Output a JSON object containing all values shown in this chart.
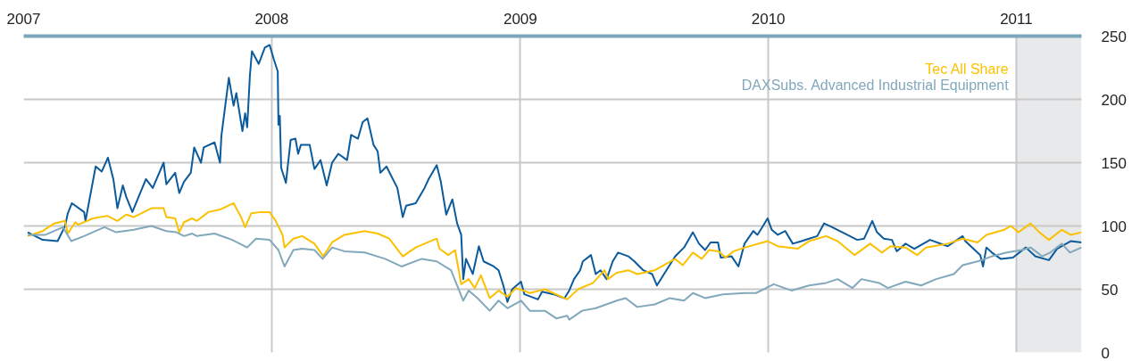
{
  "chart_data": {
    "type": "line",
    "xlim": [
      "2007-01-01",
      "2011-04-07"
    ],
    "xticks": [
      "2007",
      "2008",
      "2009",
      "2010",
      "2011"
    ],
    "ylim": [
      0,
      250
    ],
    "yticks": [
      0,
      50,
      100,
      150,
      200,
      250
    ],
    "grid": true,
    "legend": "top right",
    "bands": [
      {
        "axis": "x",
        "from": "2011-01-01",
        "to": "2011-04-07",
        "color": "#e8e9eb"
      }
    ],
    "series": [
      {
        "color": "#0b5a9b",
        "x": [
          "2007-01-07",
          "2007-01-29",
          "2007-02-20",
          "2007-03-03",
          "2007-03-07",
          "2007-03-13",
          "2007-03-31",
          "2007-04-02",
          "2007-04-17",
          "2007-04-26",
          "2007-05-05",
          "2007-05-13",
          "2007-05-19",
          "2007-05-27",
          "2007-06-01",
          "2007-06-10",
          "2007-06-30",
          "2007-07-10",
          "2007-07-26",
          "2007-07-30",
          "2007-08-12",
          "2007-08-18",
          "2007-08-25",
          "2007-09-04",
          "2007-09-09",
          "2007-09-19",
          "2007-09-23",
          "2007-10-09",
          "2007-10-17",
          "2007-10-19",
          "2007-10-24",
          "2007-10-30",
          "2007-11-06",
          "2007-11-10",
          "2007-11-19",
          "2007-11-23",
          "2007-11-26",
          "2007-11-30",
          "2007-12-03",
          "2007-12-13",
          "2007-12-22",
          "2007-12-29",
          "2008-01-04",
          "2008-01-10",
          "2008-01-11",
          "2008-01-13",
          "2008-01-15",
          "2008-01-22",
          "2008-01-29",
          "2008-02-05",
          "2008-02-09",
          "2008-02-13",
          "2008-02-26",
          "2008-03-04",
          "2008-03-13",
          "2008-03-22",
          "2008-03-30",
          "2008-04-08",
          "2008-04-21",
          "2008-04-27",
          "2008-05-07",
          "2008-05-14",
          "2008-05-21",
          "2008-05-30",
          "2008-06-05",
          "2008-06-09",
          "2008-06-18",
          "2008-07-04",
          "2008-07-12",
          "2008-07-17",
          "2008-07-31",
          "2008-08-13",
          "2008-08-19",
          "2008-08-31",
          "2008-09-06",
          "2008-09-14",
          "2008-09-23",
          "2008-09-30",
          "2008-10-06",
          "2008-10-09",
          "2008-10-13",
          "2008-10-23",
          "2008-11-01",
          "2008-11-08",
          "2008-11-23",
          "2008-11-30",
          "2008-12-07",
          "2008-12-13",
          "2008-12-20",
          "2009-01-02",
          "2009-01-07",
          "2009-01-27",
          "2009-02-02",
          "2009-02-19",
          "2009-03-07",
          "2009-03-14",
          "2009-03-21",
          "2009-03-30",
          "2009-04-03",
          "2009-04-15",
          "2009-04-22",
          "2009-04-29",
          "2009-05-08",
          "2009-05-17",
          "2009-05-25",
          "2009-06-09",
          "2009-06-18",
          "2009-07-01",
          "2009-07-14",
          "2009-07-21",
          "2009-08-04",
          "2009-08-17",
          "2009-08-30",
          "2009-09-12",
          "2009-09-21",
          "2009-09-30",
          "2009-10-08",
          "2009-10-19",
          "2009-10-23",
          "2009-11-08",
          "2009-11-18",
          "2009-11-27",
          "2009-12-10",
          "2009-12-16",
          "2009-12-23",
          "2009-12-31",
          "2010-01-06",
          "2010-01-15",
          "2010-01-26",
          "2010-02-06",
          "2010-02-19",
          "2010-03-02",
          "2010-03-14",
          "2010-03-24",
          "2010-04-05",
          "2010-04-16",
          "2010-05-01",
          "2010-05-12",
          "2010-05-22",
          "2010-06-03",
          "2010-06-10",
          "2010-06-20",
          "2010-07-02",
          "2010-07-09",
          "2010-07-22",
          "2010-08-04",
          "2010-08-27",
          "2010-09-22",
          "2010-10-14",
          "2010-10-18",
          "2010-11-09",
          "2010-11-13",
          "2010-11-18",
          "2010-11-26",
          "2010-12-09",
          "2010-12-27",
          "2011-01-15",
          "2011-01-29",
          "2011-02-18",
          "2011-03-02",
          "2011-03-22",
          "2011-04-07"
        ],
        "values": [
          95,
          89,
          88,
          100,
          110,
          118,
          111,
          104,
          147,
          143,
          154,
          137,
          114,
          132,
          123,
          111,
          137,
          130,
          150,
          133,
          142,
          126,
          135,
          142,
          162,
          150,
          162,
          166,
          150,
          171,
          192,
          217,
          195,
          205,
          175,
          189,
          178,
          219,
          238,
          228,
          241,
          243,
          232,
          222,
          180,
          187,
          146,
          134,
          168,
          169,
          157,
          164,
          164,
          145,
          152,
          132,
          150,
          157,
          152,
          172,
          169,
          182,
          185,
          164,
          159,
          142,
          147,
          130,
          107,
          116,
          118,
          130,
          137,
          148,
          135,
          109,
          121,
          102,
          93,
          58,
          74,
          62,
          84,
          72,
          68,
          65,
          53,
          40,
          50,
          56,
          46,
          42,
          48,
          46,
          43,
          49,
          58,
          65,
          72,
          77,
          62,
          65,
          58,
          72,
          79,
          76,
          72,
          65,
          62,
          53,
          65,
          76,
          83,
          95,
          86,
          81,
          87,
          87,
          75,
          76,
          68,
          86,
          96,
          93,
          99,
          106,
          97,
          93,
          96,
          86,
          88,
          90,
          92,
          102,
          99,
          96,
          92,
          89,
          90,
          104,
          95,
          90,
          89,
          80,
          86,
          82,
          89,
          84,
          92,
          88,
          77,
          68,
          83,
          79,
          74,
          75,
          83,
          76,
          73,
          82,
          88,
          87
        ]
      },
      {
        "name": "Tec All Share",
        "color": "#fbc100",
        "x": [
          "2007-01-07",
          "2007-01-29",
          "2007-02-15",
          "2007-03-03",
          "2007-03-07",
          "2007-03-18",
          "2007-03-22",
          "2007-04-13",
          "2007-05-04",
          "2007-05-19",
          "2007-06-01",
          "2007-06-12",
          "2007-07-08",
          "2007-07-26",
          "2007-07-30",
          "2007-08-12",
          "2007-08-18",
          "2007-08-25",
          "2007-09-06",
          "2007-09-13",
          "2007-09-30",
          "2007-10-17",
          "2007-11-06",
          "2007-11-17",
          "2007-11-23",
          "2007-12-02",
          "2007-12-16",
          "2007-12-29",
          "2008-01-07",
          "2008-01-17",
          "2008-01-20",
          "2008-02-02",
          "2008-02-15",
          "2008-03-04",
          "2008-03-17",
          "2008-03-30",
          "2008-04-17",
          "2008-05-17",
          "2008-06-05",
          "2008-06-22",
          "2008-07-12",
          "2008-07-31",
          "2008-08-31",
          "2008-09-04",
          "2008-09-17",
          "2008-09-27",
          "2008-10-06",
          "2008-10-17",
          "2008-10-26",
          "2008-11-04",
          "2008-11-17",
          "2008-11-30",
          "2008-12-13",
          "2008-12-26",
          "2009-01-15",
          "2009-02-06",
          "2009-03-11",
          "2009-03-27",
          "2009-04-18",
          "2009-05-05",
          "2009-05-10",
          "2009-05-23",
          "2009-06-09",
          "2009-06-22",
          "2009-07-18",
          "2009-07-31",
          "2009-08-17",
          "2009-08-28",
          "2009-09-12",
          "2009-09-25",
          "2009-10-06",
          "2009-10-20",
          "2009-10-30",
          "2009-11-11",
          "2009-11-28",
          "2009-12-31",
          "2010-01-15",
          "2010-02-13",
          "2010-03-02",
          "2010-03-27",
          "2010-04-13",
          "2010-05-08",
          "2010-05-31",
          "2010-06-17",
          "2010-06-30",
          "2010-07-22",
          "2010-08-08",
          "2010-08-21",
          "2010-09-01",
          "2010-09-22",
          "2010-10-14",
          "2010-11-05",
          "2010-11-18",
          "2010-12-14",
          "2010-12-24",
          "2011-01-04",
          "2011-01-22",
          "2011-02-04",
          "2011-02-18",
          "2011-03-09",
          "2011-03-22",
          "2011-04-07"
        ],
        "values": [
          92,
          96,
          102,
          104,
          94,
          103,
          101,
          106,
          108,
          104,
          109,
          107,
          114,
          114,
          107,
          106,
          95,
          103,
          106,
          104,
          111,
          113,
          118,
          107,
          99,
          110,
          111,
          111,
          104,
          93,
          83,
          90,
          92,
          86,
          76,
          87,
          93,
          96,
          94,
          90,
          76,
          83,
          90,
          82,
          77,
          81,
          54,
          58,
          51,
          61,
          43,
          49,
          44,
          51,
          47,
          50,
          42,
          50,
          55,
          65,
          58,
          63,
          65,
          62,
          65,
          69,
          74,
          69,
          79,
          74,
          81,
          80,
          75,
          80,
          83,
          88,
          84,
          82,
          88,
          92,
          88,
          77,
          86,
          79,
          84,
          83,
          77,
          83,
          84,
          86,
          90,
          87,
          93,
          97,
          100,
          95,
          102,
          95,
          89,
          97,
          93,
          95
        ]
      },
      {
        "name": "DAXSubs. Advanced Industrial Equipment",
        "color": "#82a8bb",
        "x": [
          "2007-01-07",
          "2007-02-02",
          "2007-02-28",
          "2007-03-12",
          "2007-03-31",
          "2007-04-17",
          "2007-04-30",
          "2007-05-17",
          "2007-06-12",
          "2007-07-08",
          "2007-07-30",
          "2007-08-14",
          "2007-08-25",
          "2007-09-06",
          "2007-09-13",
          "2007-10-09",
          "2007-11-04",
          "2007-11-26",
          "2007-12-09",
          "2007-12-29",
          "2008-01-11",
          "2008-01-20",
          "2008-02-02",
          "2008-02-15",
          "2008-03-04",
          "2008-03-16",
          "2008-03-30",
          "2008-04-17",
          "2008-05-17",
          "2008-06-16",
          "2008-07-10",
          "2008-08-09",
          "2008-08-31",
          "2008-09-21",
          "2008-10-09",
          "2008-10-17",
          "2008-10-30",
          "2008-11-17",
          "2008-11-30",
          "2008-12-13",
          "2009-01-02",
          "2009-01-15",
          "2009-02-06",
          "2009-02-23",
          "2009-03-11",
          "2009-03-14",
          "2009-04-02",
          "2009-04-22",
          "2009-05-23",
          "2009-06-05",
          "2009-06-22",
          "2009-07-18",
          "2009-08-09",
          "2009-08-30",
          "2009-09-12",
          "2009-09-30",
          "2009-10-26",
          "2009-11-28",
          "2009-12-14",
          "2010-01-09",
          "2010-02-04",
          "2010-03-02",
          "2010-03-27",
          "2010-04-13",
          "2010-05-05",
          "2010-05-18",
          "2010-06-13",
          "2010-06-26",
          "2010-07-22",
          "2010-08-14",
          "2010-09-05",
          "2010-10-01",
          "2010-10-14",
          "2010-11-05",
          "2010-11-26",
          "2010-12-18",
          "2011-01-09",
          "2011-01-22",
          "2011-02-08",
          "2011-02-20",
          "2011-03-09",
          "2011-03-21",
          "2011-04-07"
        ],
        "values": [
          93,
          93,
          99,
          88,
          92,
          96,
          99,
          95,
          97,
          100,
          96,
          95,
          92,
          94,
          92,
          94,
          89,
          83,
          90,
          89,
          81,
          68,
          81,
          82,
          81,
          74,
          83,
          80,
          79,
          74,
          68,
          74,
          72,
          65,
          41,
          49,
          43,
          33,
          41,
          35,
          41,
          33,
          33,
          27,
          29,
          26,
          33,
          35,
          41,
          43,
          36,
          38,
          43,
          41,
          47,
          43,
          46,
          47,
          47,
          54,
          49,
          53,
          55,
          58,
          51,
          58,
          55,
          51,
          56,
          53,
          58,
          62,
          69,
          72,
          76,
          79,
          81,
          83,
          76,
          79,
          86,
          79,
          83
        ]
      }
    ]
  }
}
